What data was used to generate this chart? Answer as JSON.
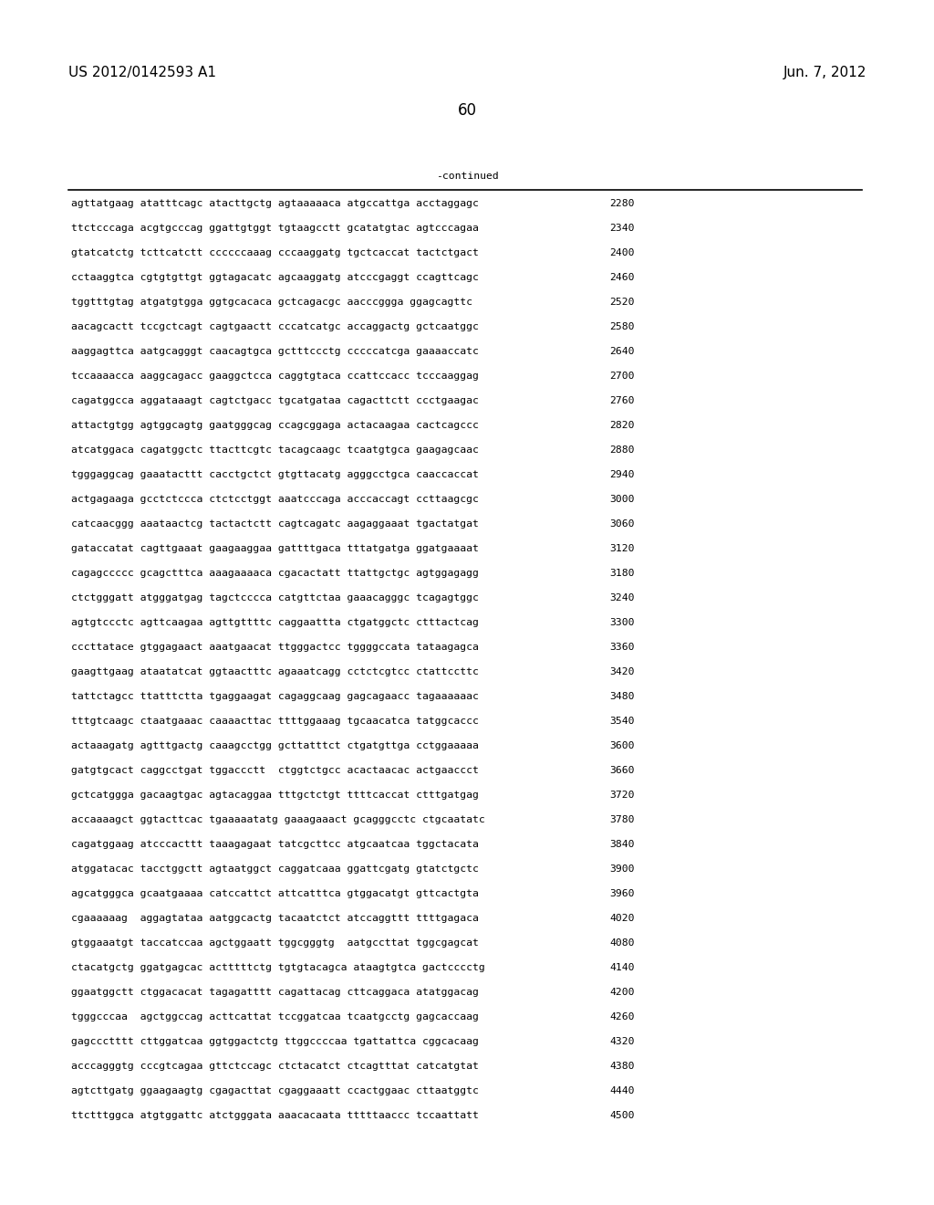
{
  "header_left": "US 2012/0142593 A1",
  "header_right": "Jun. 7, 2012",
  "page_number": "60",
  "continued_label": "-continued",
  "sequences": [
    {
      "seq": "agttatgaag atatttcagc atacttgctg agtaaaaaca atgccattga acctaggagc",
      "num": 2280
    },
    {
      "seq": "ttctcccaga acgtgcccag ggattgtggt tgtaagcctt gcatatgtac agtcccagaa",
      "num": 2340
    },
    {
      "seq": "gtatcatctg tcttcatctt ccccccaaag cccaaggatg tgctcaccat tactctgact",
      "num": 2400
    },
    {
      "seq": "cctaaggtca cgtgtgttgt ggtagacatc agcaaggatg atcccgaggt ccagttcagc",
      "num": 2460
    },
    {
      "seq": "tggtttgtag atgatgtgga ggtgcacaca gctcagacgc aacccggga ggagcagttc",
      "num": 2520
    },
    {
      "seq": "aacagcactt tccgctcagt cagtgaactt cccatcatgc accaggactg gctcaatggc",
      "num": 2580
    },
    {
      "seq": "aaggagttca aatgcagggt caacagtgca gctttccctg cccccatcga gaaaaccatc",
      "num": 2640
    },
    {
      "seq": "tccaaaacca aaggcagacc gaaggctcca caggtgtaca ccattccacc tcccaaggag",
      "num": 2700
    },
    {
      "seq": "cagatggcca aggataaagt cagtctgacc tgcatgataa cagacttctt ccctgaagac",
      "num": 2760
    },
    {
      "seq": "attactgtgg agtggcagtg gaatgggcag ccagcggaga actacaagaa cactcagccc",
      "num": 2820
    },
    {
      "seq": "atcatggaca cagatggctc ttacttcgtc tacagcaagc tcaatgtgca gaagagcaac",
      "num": 2880
    },
    {
      "seq": "tgggaggcag gaaatacttt cacctgctct gtgttacatg agggcctgca caaccaccat",
      "num": 2940
    },
    {
      "seq": "actgagaaga gcctctccca ctctcctggt aaatcccaga acccaccagt ccttaagcgc",
      "num": 3000
    },
    {
      "seq": "catcaacggg aaataactcg tactactctt cagtcagatc aagaggaaat tgactatgat",
      "num": 3060
    },
    {
      "seq": "gataccatat cagttgaaat gaagaaggaa gattttgaca tttatgatga ggatgaaaat",
      "num": 3120
    },
    {
      "seq": "cagagccccc gcagctttca aaagaaaaca cgacactatt ttattgctgc agtggagagg",
      "num": 3180
    },
    {
      "seq": "ctctgggatt atgggatgag tagctcccca catgttctaa gaaacagggc tcagagtggc",
      "num": 3240
    },
    {
      "seq": "agtgtccctc agttcaagaa agttgttttc caggaattta ctgatggctc ctttactcag",
      "num": 3300
    },
    {
      "seq": "cccttatace gtggagaact aaatgaacat ttgggactcc tggggccata tataagagca",
      "num": 3360
    },
    {
      "seq": "gaagttgaag ataatatcat ggtaactttc agaaatcagg cctctcgtcc ctattccttc",
      "num": 3420
    },
    {
      "seq": "tattctagcc ttatttctta tgaggaagat cagaggcaag gagcagaacc tagaaaaaac",
      "num": 3480
    },
    {
      "seq": "tttgtcaagc ctaatgaaac caaaacttac ttttggaaag tgcaacatca tatggcaccc",
      "num": 3540
    },
    {
      "seq": "actaaagatg agtttgactg caaagcctgg gcttatttct ctgatgttga cctggaaaaa",
      "num": 3600
    },
    {
      "seq": "gatgtgcact caggcctgat tggaccctt  ctggtctgcc acactaacac actgaaccct",
      "num": 3660
    },
    {
      "seq": "gctcatggga gacaagtgac agtacaggaa tttgctctgt ttttcaccat ctttgatgag",
      "num": 3720
    },
    {
      "seq": "accaaaagct ggtacttcac tgaaaaatatg gaaagaaact gcagggcctc ctgcaatatc",
      "num": 3780
    },
    {
      "seq": "cagatggaag atcccacttt taaagagaat tatcgcttcc atgcaatcaa tggctacata",
      "num": 3840
    },
    {
      "seq": "atggatacac tacctggctt agtaatggct caggatcaaa ggattcgatg gtatctgctc",
      "num": 3900
    },
    {
      "seq": "agcatgggca gcaatgaaaa catccattct attcatttca gtggacatgt gttcactgta",
      "num": 3960
    },
    {
      "seq": "cgaaaaaag  aggagtataa aatggcactg tacaatctct atccaggttt ttttgagaca",
      "num": 4020
    },
    {
      "seq": "gtggaaatgt taccatccaa agctggaatt tggcgggtg  aatgccttat tggcgagcat",
      "num": 4080
    },
    {
      "seq": "ctacatgctg ggatgagcac actttttctg tgtgtacagca ataagtgtca gactcccctg",
      "num": 4140
    },
    {
      "seq": "ggaatggctt ctggacacat tagagatttt cagattacag cttcaggaca atatggacag",
      "num": 4200
    },
    {
      "seq": "tgggcccaa  agctggccag acttcattat tccggatcaa tcaatgcctg gagcaccaag",
      "num": 4260
    },
    {
      "seq": "gagccctttt cttggatcaa ggtggactctg ttggccccaa tgattattca cggcacaag",
      "num": 4320
    },
    {
      "seq": "acccagggtg cccgtcagaa gttctccagc ctctacatct ctcagtttat catcatgtat",
      "num": 4380
    },
    {
      "seq": "agtcttgatg ggaagaagtg cgagacttat cgaggaaatt ccactggaac cttaatggtc",
      "num": 4440
    },
    {
      "seq": "ttctttggca atgtggattc atctgggata aaacacaata tttttaaccc tccaattatt",
      "num": 4500
    }
  ],
  "font_size_header": 11,
  "font_size_seq": 8.2,
  "font_size_page": 12,
  "line_color": "#000000",
  "text_color": "#000000",
  "bg_color": "#ffffff"
}
